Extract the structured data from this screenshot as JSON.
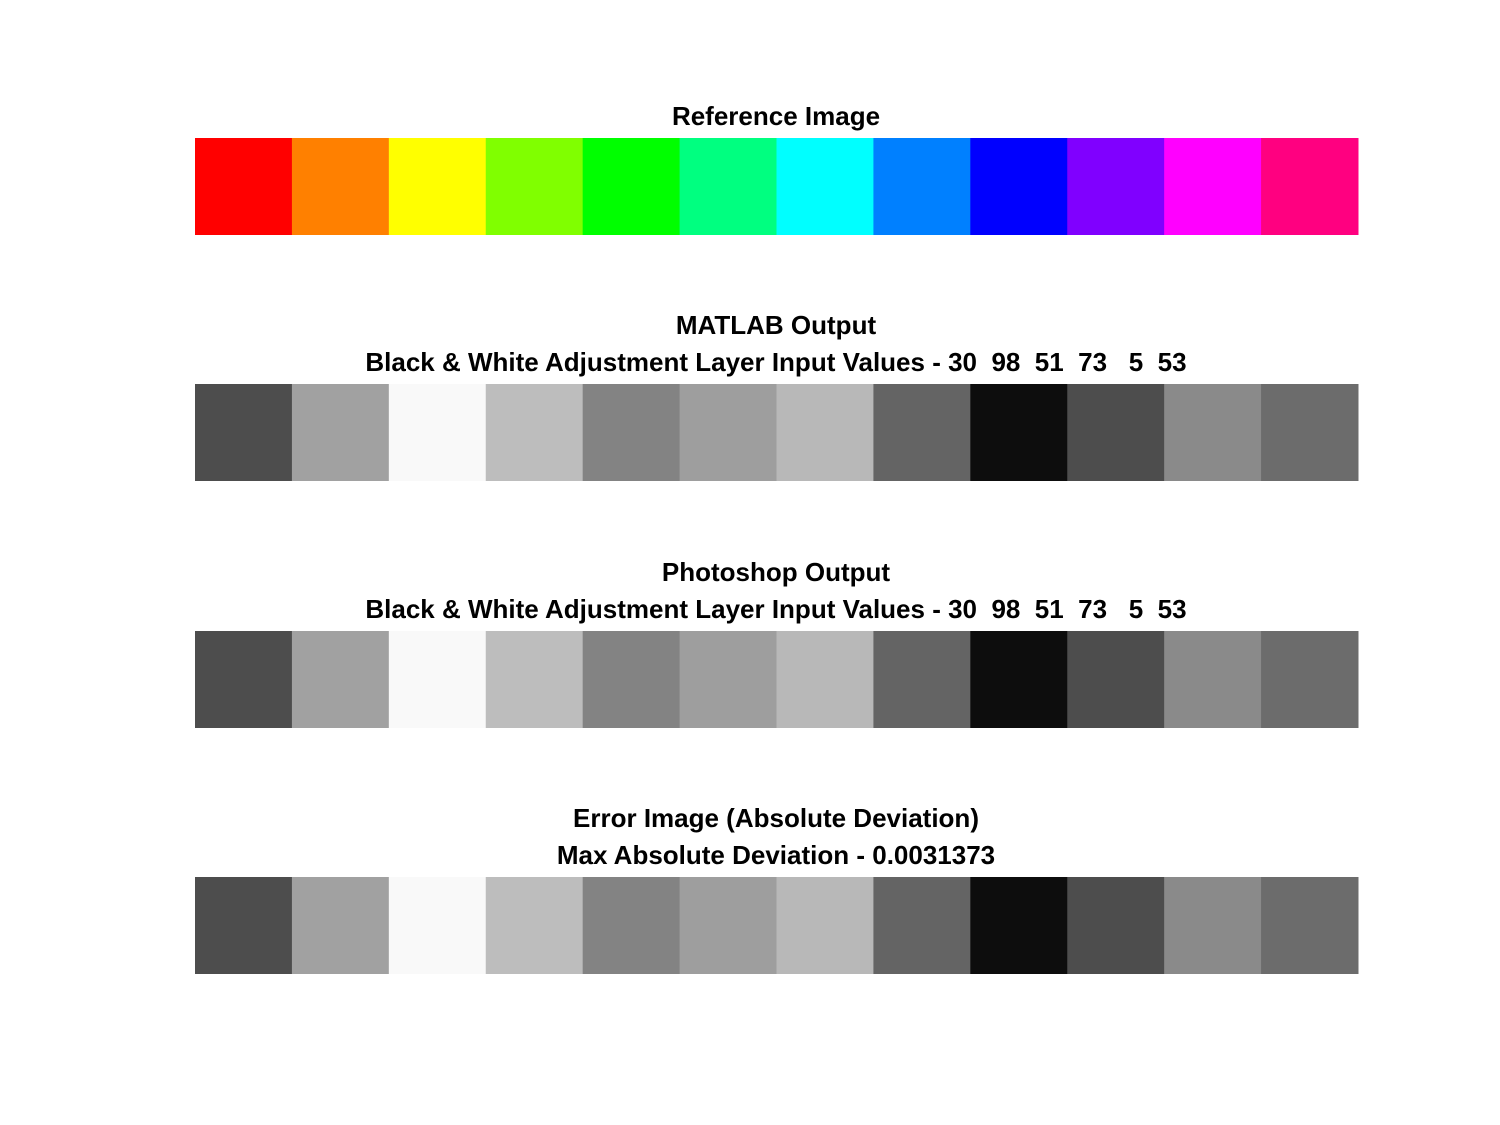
{
  "panels": [
    {
      "title": [
        "Reference Image"
      ],
      "swatches": [
        "#ff0000",
        "#ff8000",
        "#ffff00",
        "#80ff00",
        "#00ff00",
        "#00ff80",
        "#00ffff",
        "#0080ff",
        "#0000ff",
        "#8000ff",
        "#ff00ff",
        "#ff0080"
      ]
    },
    {
      "title": [
        "MATLAB Output",
        "Black & White Adjustment Layer Input Values - 30  98  51  73   5  53"
      ],
      "swatches": [
        "#4d4d4d",
        "#a1a1a1",
        "#f9f9f9",
        "#bdbdbd",
        "#838383",
        "#9e9e9e",
        "#b8b8b8",
        "#646464",
        "#0d0d0d",
        "#4d4d4d",
        "#8a8a8a",
        "#6c6c6c"
      ]
    },
    {
      "title": [
        "Photoshop Output",
        "Black & White Adjustment Layer Input Values - 30  98  51  73   5  53"
      ],
      "swatches": [
        "#4d4d4d",
        "#a1a1a1",
        "#f9f9f9",
        "#bdbdbd",
        "#838383",
        "#9e9e9e",
        "#b8b8b8",
        "#646464",
        "#0d0d0d",
        "#4d4d4d",
        "#8a8a8a",
        "#6c6c6c"
      ]
    },
    {
      "title": [
        "Error Image (Absolute Deviation)",
        "Max Absolute Deviation - 0.0031373"
      ],
      "swatches": [
        "#4d4d4d",
        "#a1a1a1",
        "#f9f9f9",
        "#bdbdbd",
        "#838383",
        "#9e9e9e",
        "#b8b8b8",
        "#646464",
        "#0d0d0d",
        "#4d4d4d",
        "#8a8a8a",
        "#6c6c6c"
      ]
    }
  ]
}
